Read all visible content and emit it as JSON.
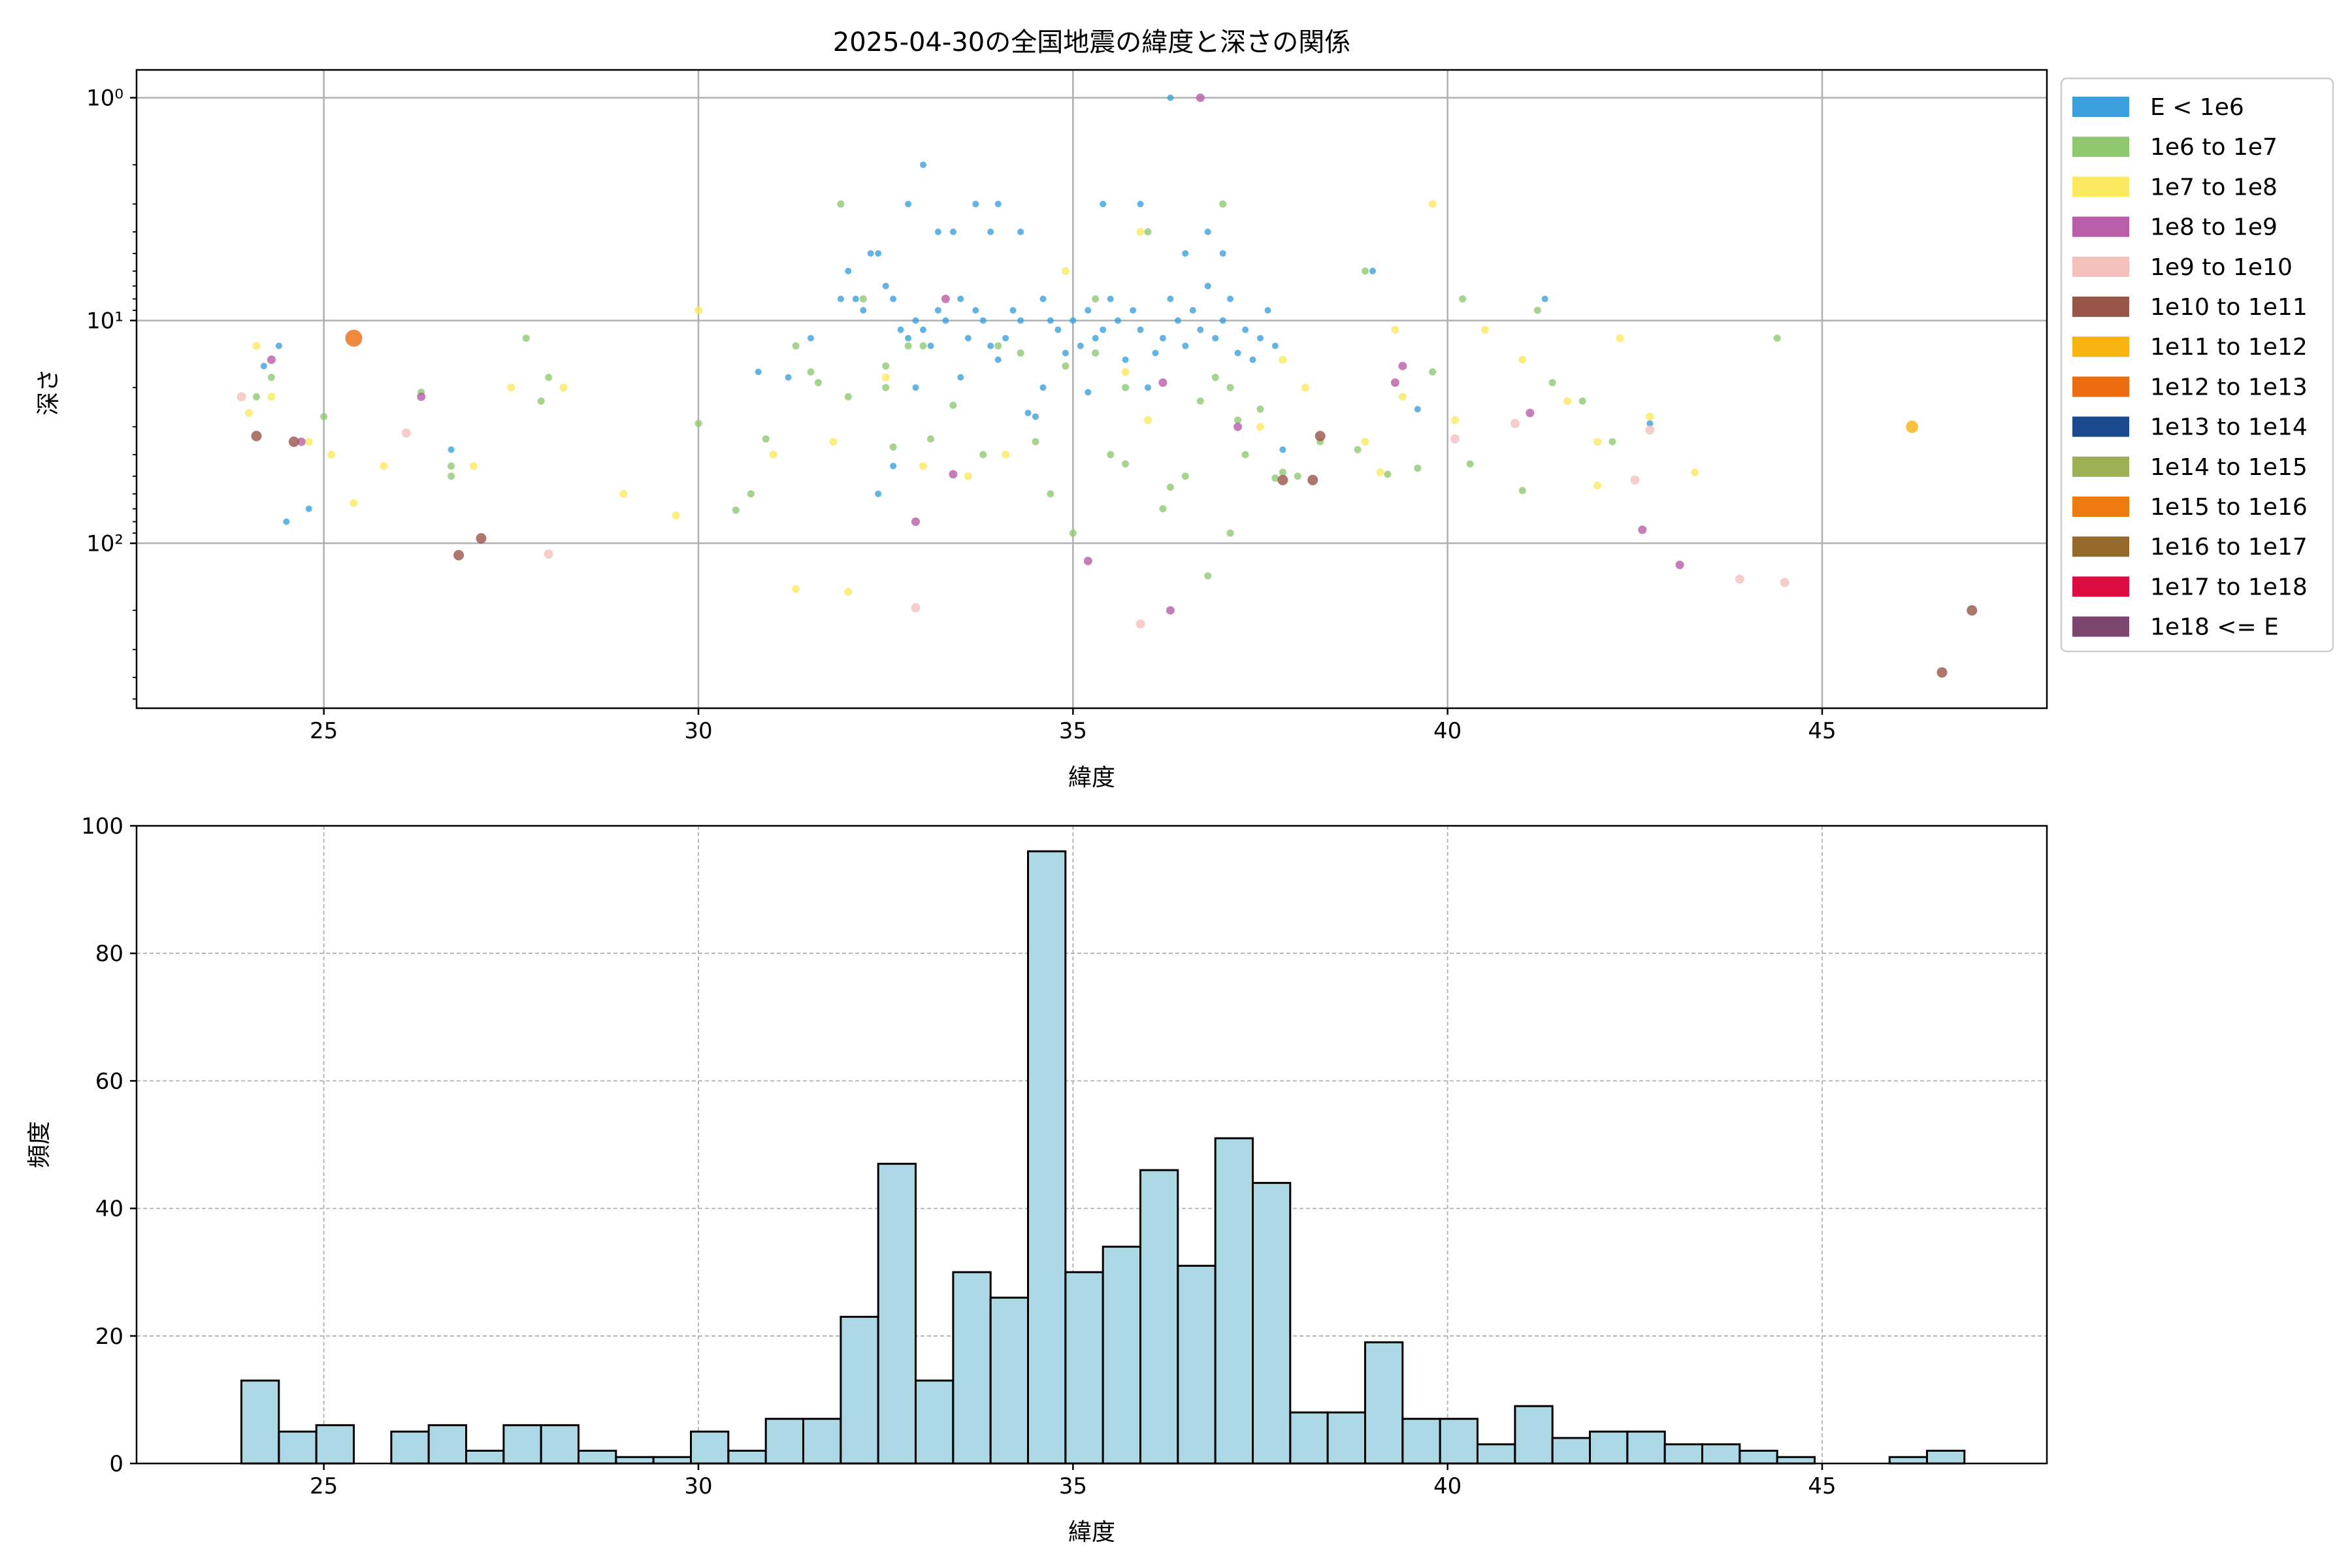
{
  "chart_data": [
    {
      "type": "scatter",
      "title": "2025-04-30の全国地震の緯度と深さの関係",
      "xlabel": "緯度",
      "ylabel": "深さ",
      "xlim": [
        22.5,
        48.0
      ],
      "ylim": [
        550,
        0.75
      ],
      "yscale": "log",
      "y_inverted": true,
      "grid": true,
      "x_ticks": [
        25,
        30,
        35,
        40,
        45
      ],
      "y_ticks": [
        {
          "value": 1,
          "label": "10⁰"
        },
        {
          "value": 10,
          "label": "10¹"
        },
        {
          "value": 100,
          "label": "10²"
        }
      ],
      "legend_position": "outside-right-top",
      "legend": [
        {
          "label": "E < 1e6",
          "color": "#3ca0dc"
        },
        {
          "label": "1e6 to 1e7",
          "color": "#90c870"
        },
        {
          "label": "1e7 to 1e8",
          "color": "#fbe960"
        },
        {
          "label": "1e8 to 1e9",
          "color": "#b85ea8"
        },
        {
          "label": "1e9 to 1e10",
          "color": "#f4c0bc"
        },
        {
          "label": "1e10 to 1e11",
          "color": "#985548"
        },
        {
          "label": "1e11 to 1e12",
          "color": "#f8b410"
        },
        {
          "label": "1e12 to 1e13",
          "color": "#ec6c10"
        },
        {
          "label": "1e13 to 1e14",
          "color": "#1c4a90"
        },
        {
          "label": "1e14 to 1e15",
          "color": "#9caf52"
        },
        {
          "label": "1e15 to 1e16",
          "color": "#ee7b10"
        },
        {
          "label": "1e16 to 1e17",
          "color": "#94692a"
        },
        {
          "label": "1e17 to 1e18",
          "color": "#dc0c40"
        },
        {
          "label": "1e18 <= E",
          "color": "#7c4670"
        }
      ],
      "series": [
        {
          "name": "E < 1e6",
          "points": [
            [
              24.2,
              16
            ],
            [
              24.4,
              13
            ],
            [
              24.5,
              80
            ],
            [
              24.8,
              70
            ],
            [
              26.7,
              38
            ],
            [
              30.8,
              17
            ],
            [
              31.2,
              18
            ],
            [
              31.5,
              12
            ],
            [
              31.9,
              8
            ],
            [
              32.0,
              6
            ],
            [
              32.1,
              8
            ],
            [
              32.2,
              9
            ],
            [
              32.3,
              5
            ],
            [
              32.4,
              5
            ],
            [
              32.5,
              7
            ],
            [
              32.6,
              8
            ],
            [
              32.7,
              11
            ],
            [
              32.8,
              12
            ],
            [
              32.9,
              10
            ],
            [
              33.0,
              11
            ],
            [
              33.1,
              13
            ],
            [
              33.2,
              9
            ],
            [
              33.3,
              10
            ],
            [
              33.5,
              8
            ],
            [
              33.6,
              12
            ],
            [
              33.7,
              9
            ],
            [
              33.8,
              10
            ],
            [
              33.9,
              13
            ],
            [
              34.0,
              15
            ],
            [
              34.1,
              12
            ],
            [
              34.2,
              9
            ],
            [
              34.3,
              10
            ],
            [
              34.4,
              26
            ],
            [
              34.5,
              27
            ],
            [
              34.6,
              8
            ],
            [
              34.7,
              10
            ],
            [
              34.8,
              11
            ],
            [
              34.9,
              14
            ],
            [
              35.0,
              10
            ],
            [
              35.1,
              13
            ],
            [
              35.2,
              9
            ],
            [
              35.3,
              12
            ],
            [
              35.4,
              11
            ],
            [
              35.5,
              8
            ],
            [
              35.6,
              10
            ],
            [
              35.7,
              15
            ],
            [
              35.8,
              9
            ],
            [
              35.9,
              11
            ],
            [
              36.0,
              20
            ],
            [
              36.1,
              14
            ],
            [
              36.2,
              12
            ],
            [
              36.3,
              8
            ],
            [
              36.4,
              10
            ],
            [
              36.5,
              13
            ],
            [
              36.6,
              9
            ],
            [
              36.7,
              11
            ],
            [
              36.8,
              7
            ],
            [
              36.9,
              12
            ],
            [
              37.0,
              10
            ],
            [
              37.1,
              8
            ],
            [
              37.2,
              14
            ],
            [
              37.3,
              11
            ],
            [
              37.4,
              15
            ],
            [
              37.5,
              12
            ],
            [
              37.6,
              9
            ],
            [
              37.7,
              13
            ],
            [
              37.8,
              38
            ],
            [
              32.4,
              60
            ],
            [
              32.6,
              45
            ],
            [
              32.8,
              3
            ],
            [
              33.0,
              2
            ],
            [
              33.2,
              4
            ],
            [
              33.4,
              4
            ],
            [
              33.7,
              3
            ],
            [
              34.0,
              3
            ],
            [
              34.3,
              4
            ],
            [
              35.4,
              3
            ],
            [
              35.9,
              3
            ],
            [
              36.3,
              1
            ],
            [
              36.8,
              4
            ],
            [
              36.5,
              5
            ],
            [
              33.5,
              18
            ],
            [
              34.6,
              20
            ],
            [
              35.2,
              21
            ],
            [
              37.0,
              5
            ],
            [
              32.9,
              20
            ],
            [
              33.9,
              4
            ],
            [
              41.3,
              8
            ],
            [
              39.0,
              6
            ],
            [
              39.6,
              25
            ],
            [
              42.7,
              29
            ]
          ]
        },
        {
          "name": "1e6 to 1e7",
          "points": [
            [
              24.1,
              22
            ],
            [
              24.3,
              18
            ],
            [
              25.0,
              27
            ],
            [
              26.3,
              21
            ],
            [
              26.7,
              45
            ],
            [
              26.7,
              50
            ],
            [
              27.7,
              12
            ],
            [
              27.9,
              23
            ],
            [
              28.0,
              18
            ],
            [
              30.0,
              29
            ],
            [
              30.7,
              60
            ],
            [
              30.5,
              71
            ],
            [
              30.9,
              34
            ],
            [
              31.3,
              13
            ],
            [
              31.5,
              17
            ],
            [
              31.9,
              3
            ],
            [
              32.0,
              22
            ],
            [
              32.2,
              8
            ],
            [
              32.5,
              20
            ],
            [
              32.5,
              16
            ],
            [
              32.6,
              37
            ],
            [
              32.8,
              13
            ],
            [
              33.1,
              34
            ],
            [
              33.4,
              24
            ],
            [
              33.8,
              40
            ],
            [
              34.0,
              13
            ],
            [
              34.3,
              14
            ],
            [
              34.5,
              35
            ],
            [
              34.7,
              60
            ],
            [
              34.9,
              16
            ],
            [
              35.0,
              90
            ],
            [
              35.3,
              14
            ],
            [
              35.5,
              40
            ],
            [
              35.7,
              44
            ],
            [
              36.0,
              4
            ],
            [
              36.2,
              70
            ],
            [
              36.3,
              56
            ],
            [
              36.5,
              50
            ],
            [
              36.7,
              23
            ],
            [
              36.9,
              18
            ],
            [
              37.0,
              3
            ],
            [
              37.1,
              20
            ],
            [
              37.2,
              28
            ],
            [
              37.3,
              40
            ],
            [
              37.5,
              25
            ],
            [
              37.8,
              48
            ],
            [
              38.0,
              50
            ],
            [
              38.3,
              35
            ],
            [
              38.8,
              38
            ],
            [
              38.9,
              6
            ],
            [
              39.2,
              49
            ],
            [
              39.6,
              46
            ],
            [
              39.8,
              17
            ],
            [
              40.2,
              8
            ],
            [
              40.3,
              44
            ],
            [
              41.0,
              58
            ],
            [
              41.2,
              9
            ],
            [
              41.4,
              19
            ],
            [
              41.8,
              23
            ],
            [
              42.2,
              35
            ],
            [
              44.4,
              12
            ],
            [
              37.1,
              90
            ],
            [
              36.8,
              140
            ],
            [
              37.7,
              51
            ],
            [
              35.7,
              20
            ],
            [
              31.6,
              19
            ],
            [
              35.3,
              8
            ],
            [
              33.0,
              13
            ]
          ]
        },
        {
          "name": "1e7 to 1e8",
          "points": [
            [
              24.0,
              26
            ],
            [
              24.1,
              13
            ],
            [
              24.3,
              22
            ],
            [
              24.8,
              35
            ],
            [
              25.1,
              40
            ],
            [
              25.4,
              66
            ],
            [
              25.8,
              45
            ],
            [
              27.0,
              45
            ],
            [
              27.5,
              20
            ],
            [
              28.2,
              20
            ],
            [
              29.0,
              60
            ],
            [
              29.7,
              75
            ],
            [
              30.0,
              9
            ],
            [
              31.0,
              40
            ],
            [
              31.3,
              160
            ],
            [
              31.8,
              35
            ],
            [
              32.0,
              165
            ],
            [
              32.5,
              18
            ],
            [
              33.0,
              45
            ],
            [
              33.6,
              50
            ],
            [
              34.1,
              40
            ],
            [
              34.9,
              6
            ],
            [
              35.7,
              17
            ],
            [
              35.9,
              4
            ],
            [
              36.0,
              28
            ],
            [
              37.5,
              30
            ],
            [
              37.8,
              15
            ],
            [
              38.1,
              20
            ],
            [
              38.9,
              35
            ],
            [
              39.1,
              48
            ],
            [
              39.3,
              11
            ],
            [
              39.4,
              22
            ],
            [
              39.8,
              3
            ],
            [
              40.1,
              28
            ],
            [
              40.5,
              11
            ],
            [
              41.0,
              15
            ],
            [
              41.6,
              23
            ],
            [
              42.0,
              35
            ],
            [
              42.3,
              12
            ],
            [
              42.7,
              27
            ],
            [
              43.3,
              48
            ],
            [
              42.0,
              55
            ]
          ]
        },
        {
          "name": "1e8 to 1e9",
          "points": [
            [
              24.3,
              15
            ],
            [
              24.7,
              35
            ],
            [
              26.3,
              22
            ],
            [
              32.9,
              80
            ],
            [
              33.3,
              8
            ],
            [
              35.2,
              120
            ],
            [
              36.2,
              19
            ],
            [
              36.3,
              200
            ],
            [
              36.7,
              1
            ],
            [
              37.2,
              30
            ],
            [
              39.4,
              16
            ],
            [
              39.3,
              19
            ],
            [
              41.1,
              26
            ],
            [
              42.6,
              87
            ],
            [
              43.1,
              125
            ],
            [
              33.4,
              49
            ]
          ]
        },
        {
          "name": "1e9 to 1e10",
          "points": [
            [
              23.9,
              22
            ],
            [
              26.1,
              32
            ],
            [
              28.0,
              112
            ],
            [
              32.9,
              195
            ],
            [
              35.9,
              230
            ],
            [
              40.1,
              34
            ],
            [
              40.9,
              29
            ],
            [
              42.5,
              52
            ],
            [
              42.7,
              31
            ],
            [
              43.9,
              145
            ],
            [
              44.5,
              150
            ]
          ]
        },
        {
          "name": "1e10 to 1e11",
          "points": [
            [
              24.1,
              33
            ],
            [
              24.6,
              35
            ],
            [
              26.8,
              113
            ],
            [
              27.1,
              95
            ],
            [
              37.8,
              52
            ],
            [
              38.2,
              52
            ],
            [
              38.3,
              33
            ],
            [
              46.6,
              380
            ],
            [
              47.0,
              200
            ]
          ]
        },
        {
          "name": "1e11 to 1e12",
          "points": [
            [
              46.2,
              30
            ]
          ]
        },
        {
          "name": "1e12 to 1e13",
          "points": [
            [
              25.4,
              12
            ]
          ]
        }
      ]
    },
    {
      "type": "bar",
      "title": "",
      "xlabel": "緯度",
      "ylabel": "頻度",
      "xlim": [
        22.5,
        48.0
      ],
      "ylim": [
        0,
        100
      ],
      "grid": true,
      "x_ticks": [
        25,
        30,
        35,
        40,
        45
      ],
      "y_ticks": [
        0,
        20,
        40,
        60,
        80,
        100
      ],
      "bar_color": "#add8e6",
      "bin_start": 23.9,
      "bin_width": 0.5,
      "values": [
        13,
        5,
        6,
        0,
        5,
        6,
        2,
        6,
        6,
        2,
        1,
        1,
        5,
        2,
        7,
        7,
        23,
        47,
        13,
        30,
        26,
        96,
        30,
        34,
        46,
        31,
        51,
        44,
        8,
        8,
        19,
        7,
        7,
        3,
        9,
        4,
        5,
        5,
        3,
        3,
        2,
        1,
        0,
        0,
        1,
        2
      ]
    }
  ]
}
